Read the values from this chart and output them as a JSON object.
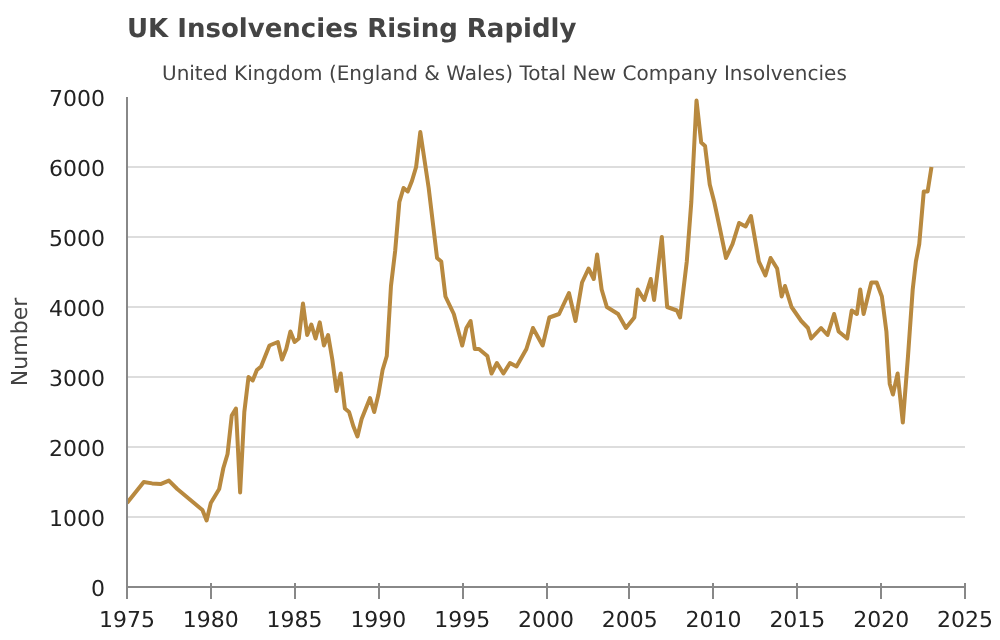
{
  "chart_data": {
    "type": "line",
    "title": "UK Insolvencies Rising Rapidly",
    "ylabel": "Number",
    "xlim": [
      1975,
      2025
    ],
    "xticks": [
      1975,
      1980,
      1985,
      1990,
      1995,
      2000,
      2005,
      2010,
      2015,
      2020,
      2025
    ],
    "ylim": [
      0,
      7000
    ],
    "yticks": [
      0,
      1000,
      2000,
      3000,
      4000,
      5000,
      6000,
      7000
    ],
    "grid": "y",
    "legend": "top left",
    "series": [
      {
        "name": "United Kingdom (England & Wales) Total New Company Insolvencies",
        "color": "#b8893f",
        "x": [
          1975.0,
          1975.5,
          1976.0,
          1976.5,
          1977.0,
          1977.5,
          1978.0,
          1978.5,
          1979.0,
          1979.5,
          1979.75,
          1980.0,
          1980.5,
          1980.75,
          1981.0,
          1981.25,
          1981.5,
          1981.75,
          1982.0,
          1982.25,
          1982.5,
          1982.75,
          1983.0,
          1983.5,
          1984.0,
          1984.25,
          1984.5,
          1984.75,
          1985.0,
          1985.25,
          1985.5,
          1985.75,
          1986.0,
          1986.25,
          1986.5,
          1986.75,
          1987.0,
          1987.25,
          1987.5,
          1987.75,
          1988.0,
          1988.25,
          1988.5,
          1988.75,
          1989.0,
          1989.25,
          1989.5,
          1989.75,
          1990.0,
          1990.25,
          1990.5,
          1990.75,
          1991.0,
          1991.25,
          1991.5,
          1991.75,
          1992.0,
          1992.25,
          1992.5,
          1992.75,
          1993.0,
          1993.25,
          1993.5,
          1993.75,
          1994.0,
          1994.5,
          1995.0,
          1995.25,
          1995.5,
          1995.75,
          1996.0,
          1996.5,
          1996.75,
          1997.07,
          1997.46,
          1997.85,
          1998.24,
          1998.83,
          1999.22,
          1999.8,
          2000.2,
          2000.78,
          2001.37,
          2001.76,
          2002.15,
          2002.54,
          2002.85,
          2003.05,
          2003.32,
          2003.63,
          2004.3,
          2004.77,
          2005.27,
          2005.47,
          2005.86,
          2006.25,
          2006.45,
          2006.91,
          2007.23,
          2007.81,
          2008.0,
          2008.4,
          2008.67,
          2008.98,
          2009.26,
          2009.49,
          2009.77,
          2010.04,
          2010.35,
          2010.74,
          2011.13,
          2011.52,
          2011.91,
          2012.23,
          2012.7,
          2013.09,
          2013.4,
          2013.79,
          2014.06,
          2014.26,
          2014.65,
          2015.23,
          2015.63,
          2015.82,
          2016.41,
          2016.8,
          2017.19,
          2017.46,
          2017.97,
          2018.24,
          2018.55,
          2018.75,
          2018.95,
          2019.41,
          2019.73,
          2020.04,
          2020.31,
          2020.51,
          2020.7,
          2020.98,
          2021.29,
          2021.6,
          2021.88,
          2022.07,
          2022.27,
          2022.54,
          2022.77,
          2023.0
        ],
        "values": [
          1200,
          1350,
          1500,
          1480,
          1470,
          1520,
          1400,
          1300,
          1200,
          1100,
          950,
          1200,
          1400,
          1700,
          1900,
          2450,
          2550,
          1350,
          2500,
          3000,
          2950,
          3100,
          3150,
          3450,
          3500,
          3250,
          3400,
          3650,
          3500,
          3550,
          4050,
          3600,
          3750,
          3550,
          3780,
          3450,
          3600,
          3250,
          2800,
          3050,
          2550,
          2500,
          2300,
          2150,
          2400,
          2550,
          2700,
          2500,
          2750,
          3100,
          3300,
          4300,
          4800,
          5500,
          5700,
          5650,
          5800,
          6000,
          6500,
          6100,
          5700,
          5200,
          4700,
          4650,
          4150,
          3900,
          3450,
          3700,
          3800,
          3400,
          3400,
          3300,
          3050,
          3200,
          3050,
          3200,
          3150,
          3400,
          3700,
          3450,
          3850,
          3900,
          4200,
          3800,
          4350,
          4550,
          4400,
          4750,
          4250,
          4000,
          3900,
          3700,
          3850,
          4250,
          4100,
          4400,
          4100,
          5000,
          4000,
          3950,
          3850,
          4650,
          5500,
          6950,
          6350,
          6300,
          5750,
          5500,
          5150,
          4700,
          4900,
          5200,
          5150,
          5300,
          4650,
          4450,
          4700,
          4550,
          4150,
          4300,
          4000,
          3800,
          3700,
          3550,
          3700,
          3600,
          3900,
          3650,
          3550,
          3950,
          3900,
          4250,
          3900,
          4350,
          4350,
          4150,
          3650,
          2900,
          2750,
          3050,
          2350,
          3300,
          4250,
          4650,
          4900,
          5650,
          5650,
          6000
        ]
      }
    ]
  }
}
